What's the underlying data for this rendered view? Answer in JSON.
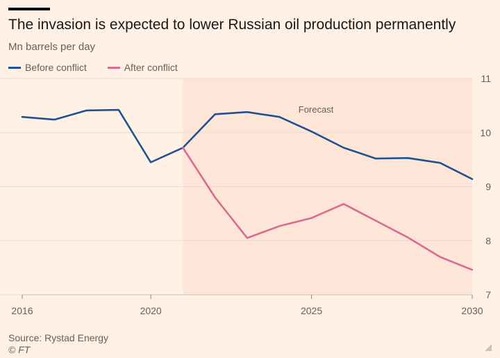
{
  "header": {
    "title": "The invasion is expected to lower Russian oil production permanently",
    "subtitle": "Mn barrels per day"
  },
  "footer": {
    "source": "Source: Rystad Energy",
    "copyright": "© FT"
  },
  "colors": {
    "before": "#1f5294",
    "after": "#d86b8f",
    "forecast_shade": "#fde5d8",
    "grid": "#e8ddd4",
    "axis_text": "#66605c"
  },
  "chart_data": {
    "type": "line",
    "x": [
      2016,
      2017,
      2018,
      2019,
      2020,
      2021,
      2022,
      2023,
      2024,
      2025,
      2026,
      2027,
      2028,
      2029,
      2030
    ],
    "series": [
      {
        "name": "Before conflict",
        "x": [
          2016,
          2017,
          2018,
          2019,
          2020,
          2021,
          2022,
          2023,
          2024,
          2025,
          2026,
          2027,
          2028,
          2029,
          2030
        ],
        "values": [
          10.29,
          10.24,
          10.41,
          10.42,
          9.45,
          9.72,
          10.34,
          10.38,
          10.29,
          10.02,
          9.72,
          9.52,
          9.53,
          9.44,
          9.14
        ]
      },
      {
        "name": "After conflict",
        "x": [
          2021,
          2022,
          2023,
          2024,
          2025,
          2026,
          2027,
          2028,
          2029,
          2030
        ],
        "values": [
          9.72,
          8.8,
          8.05,
          8.27,
          8.42,
          8.68,
          8.37,
          8.06,
          7.7,
          7.46
        ]
      }
    ],
    "forecast_region": {
      "from": 2021,
      "to": 2030,
      "label": "Forecast"
    },
    "xticks": [
      2016,
      2020,
      2025,
      2030
    ],
    "xtick_labels": [
      "2016",
      "2020",
      "2025",
      "2030"
    ],
    "yticks": [
      7,
      8,
      9,
      10,
      11
    ],
    "ytick_labels": [
      "7",
      "8",
      "9",
      "10",
      "11"
    ],
    "xlim": [
      2016,
      2030
    ],
    "ylim": [
      7,
      11
    ],
    "y_axis_side": "right",
    "grid": true,
    "legend_position": "top-left"
  }
}
